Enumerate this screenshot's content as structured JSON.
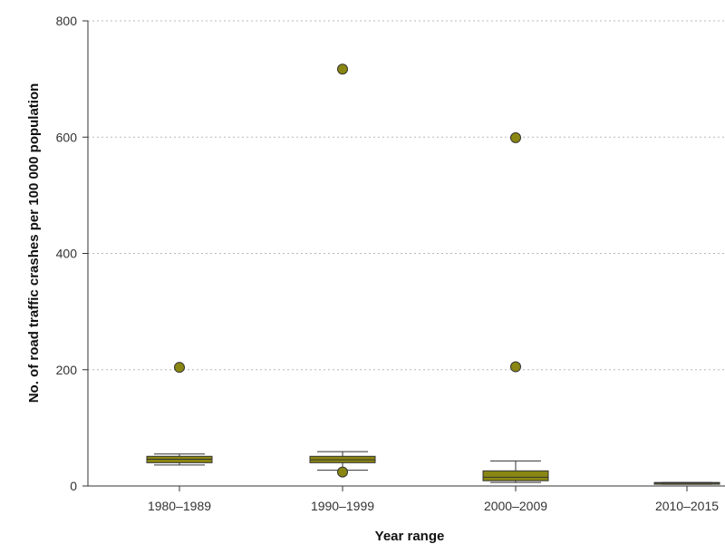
{
  "chart_data": {
    "type": "box",
    "xlabel": "Year range",
    "ylabel": "No. of road traffic crashes per 100 000 population",
    "ylim": [
      0,
      800
    ],
    "yticks": [
      0,
      200,
      400,
      600,
      800
    ],
    "grid": "horizontal dotted",
    "box_color": "#8a8612",
    "categories": [
      "1980–1989",
      "1990–1999",
      "2000–2009",
      "2010–2015"
    ],
    "boxes": [
      {
        "category": "1980–1989",
        "whisker_low": 36,
        "q1": 40,
        "median": 46,
        "q3": 51,
        "whisker_high": 55,
        "outliers": [
          204
        ]
      },
      {
        "category": "1990–1999",
        "whisker_low": 27,
        "q1": 40,
        "median": 45,
        "q3": 51,
        "whisker_high": 59,
        "outliers": [
          717,
          24
        ]
      },
      {
        "category": "2000–2009",
        "whisker_low": 6,
        "q1": 9,
        "median": 15,
        "q3": 26,
        "whisker_high": 43,
        "outliers": [
          599,
          205
        ]
      },
      {
        "category": "2010–2015",
        "whisker_low": 3,
        "q1": 3,
        "median": 5,
        "q3": 6,
        "whisker_high": 6,
        "outliers": []
      }
    ]
  }
}
